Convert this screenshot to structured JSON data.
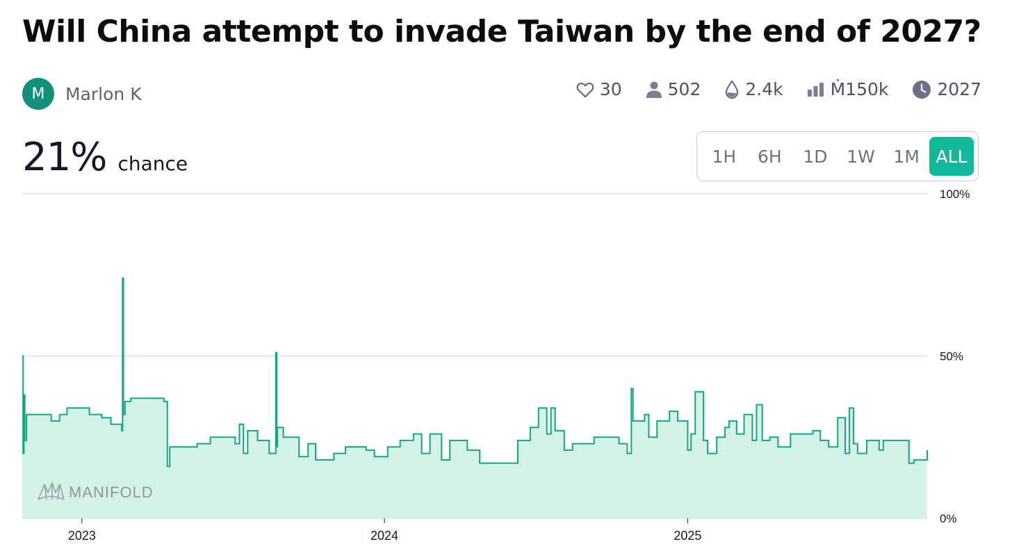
{
  "question": {
    "title": "Will China attempt to invade Taiwan by the end of 2027?"
  },
  "author": {
    "initial": "M",
    "name": "Marlon K"
  },
  "stats": {
    "likes": "30",
    "traders": "502",
    "liquidity": "2.4k",
    "volume": "Ṁ150k",
    "close_year": "2027"
  },
  "probability": {
    "value": "21%",
    "label": "chance"
  },
  "time_ranges": [
    "1H",
    "6H",
    "1D",
    "1W",
    "1M",
    "ALL"
  ],
  "selected_range": "ALL",
  "watermark": "MANIFOLD",
  "colors": {
    "accent": "#11b89a",
    "line": "#11a77f",
    "fill": "#d3f1e6",
    "avatar": "#11917a"
  },
  "chart_data": {
    "type": "area",
    "step": true,
    "x_start": "2022-10-21",
    "x_end": "2025-10-17",
    "ylim": [
      0,
      100
    ],
    "y_ticks": [
      0,
      50,
      100
    ],
    "y_tick_labels": [
      "0%",
      "50%",
      "100%"
    ],
    "x_ticks": [
      "2023-01-01",
      "2024-01-01",
      "2025-01-01"
    ],
    "x_tick_labels": [
      "2023",
      "2024",
      "2025"
    ],
    "grid": true,
    "series": [
      {
        "x": [
          "2022-10-21",
          "2022-10-22",
          "2022-10-23",
          "2022-10-24",
          "2022-10-26",
          "2022-11-05",
          "2022-11-25",
          "2022-12-05",
          "2022-12-14",
          "2022-12-25",
          "2023-01-10",
          "2023-01-25",
          "2023-02-05",
          "2023-02-18",
          "2023-02-19",
          "2023-02-20",
          "2023-02-22",
          "2023-03-01",
          "2023-03-10",
          "2023-04-10",
          "2023-04-14",
          "2023-04-17",
          "2023-04-19",
          "2023-05-05",
          "2023-05-20",
          "2023-06-05",
          "2023-06-25",
          "2023-07-05",
          "2023-07-10",
          "2023-07-15",
          "2023-07-20",
          "2023-08-01",
          "2023-08-15",
          "2023-08-23",
          "2023-08-24",
          "2023-08-25",
          "2023-09-01",
          "2023-09-20",
          "2023-10-01",
          "2023-10-10",
          "2023-10-20",
          "2023-11-01",
          "2023-11-15",
          "2023-12-01",
          "2023-12-10",
          "2023-12-20",
          "2024-01-05",
          "2024-01-20",
          "2024-02-05",
          "2024-02-15",
          "2024-02-25",
          "2024-03-10",
          "2024-03-20",
          "2024-04-10",
          "2024-04-25",
          "2024-05-10",
          "2024-05-25",
          "2024-06-10",
          "2024-06-25",
          "2024-07-05",
          "2024-07-15",
          "2024-07-20",
          "2024-07-25",
          "2024-08-05",
          "2024-08-15",
          "2024-08-25",
          "2024-09-10",
          "2024-09-25",
          "2024-10-10",
          "2024-10-20",
          "2024-10-25",
          "2024-10-27",
          "2024-11-10",
          "2024-11-15",
          "2024-11-25",
          "2024-12-10",
          "2024-12-20",
          "2025-01-01",
          "2025-01-05",
          "2025-01-10",
          "2025-01-20",
          "2025-01-25",
          "2025-02-05",
          "2025-02-15",
          "2025-02-20",
          "2025-03-01",
          "2025-03-10",
          "2025-03-20",
          "2025-03-25",
          "2025-04-01",
          "2025-04-10",
          "2025-04-20",
          "2025-04-25",
          "2025-05-05",
          "2025-05-20",
          "2025-06-01",
          "2025-06-10",
          "2025-06-20",
          "2025-07-01",
          "2025-07-10",
          "2025-07-15",
          "2025-07-20",
          "2025-07-25",
          "2025-08-05",
          "2025-08-20",
          "2025-08-25",
          "2025-09-05",
          "2025-09-15",
          "2025-09-25",
          "2025-10-01",
          "2025-10-17"
        ],
        "y": [
          50,
          20,
          38,
          24,
          32,
          32,
          30,
          32,
          34,
          34,
          32,
          31,
          29,
          27,
          74,
          32,
          36,
          37,
          37,
          36,
          16,
          22,
          22,
          22,
          23,
          25,
          25,
          23,
          29,
          20,
          27,
          24,
          20,
          51,
          22,
          28,
          25,
          19,
          23,
          18,
          18,
          20,
          22,
          22,
          21,
          19,
          22,
          24,
          26,
          20,
          26,
          18,
          24,
          21,
          17,
          17,
          17,
          24,
          28,
          34,
          26,
          34,
          27,
          21,
          23,
          23,
          25,
          25,
          23,
          20,
          40,
          30,
          32,
          25,
          30,
          33,
          30,
          21,
          26,
          39,
          24,
          20,
          25,
          28,
          30,
          26,
          32,
          24,
          35,
          24,
          25,
          22,
          22,
          26,
          26,
          27,
          24,
          22,
          31,
          20,
          34,
          23,
          20,
          24,
          21,
          24,
          24,
          24,
          17,
          18,
          21
        ]
      }
    ]
  }
}
